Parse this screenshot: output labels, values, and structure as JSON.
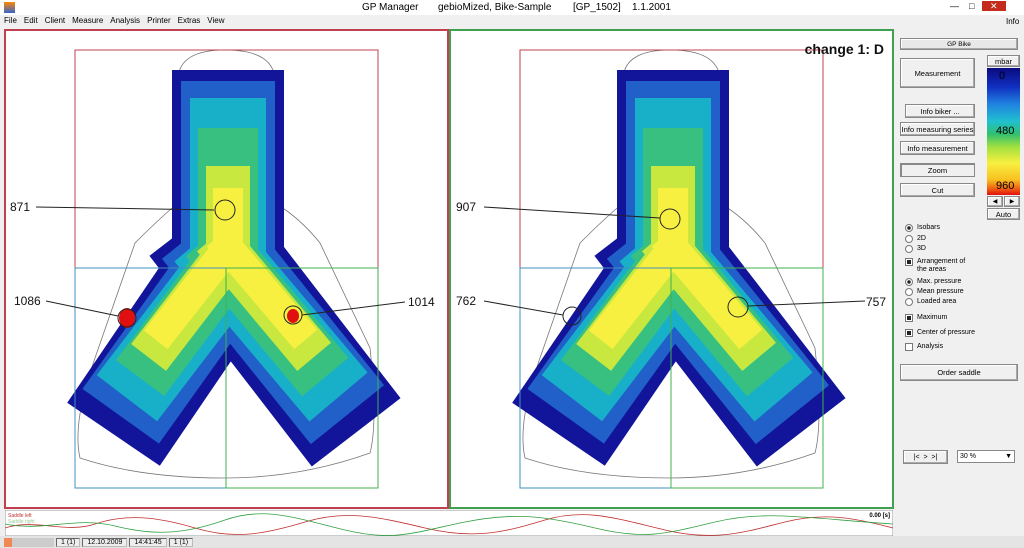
{
  "title_bar": {
    "app": "GP Manager",
    "document": "gebioMized, Bike-Sample",
    "code": "[GP_1502]",
    "date": "1.1.2001"
  },
  "menu": {
    "items": [
      "File",
      "Edit",
      "Client",
      "Measure",
      "Analysis",
      "Printer",
      "Extras",
      "View"
    ],
    "info": "Info"
  },
  "left_panel": {
    "labels": [
      "871",
      "1086",
      "1014"
    ]
  },
  "right_panel": {
    "heading": "change 1: D",
    "labels": [
      "907",
      "762",
      "757"
    ]
  },
  "side_panel": {
    "header": "GP Bike",
    "measurement": "Measurement",
    "info_buttons": [
      "Info biker ...",
      "Info measuring series",
      "Info measurement"
    ],
    "zoom": "Zoom",
    "cut": "Cut",
    "scale": {
      "unit": "mbar",
      "labels": [
        "0",
        "480",
        "960"
      ],
      "auto": "Auto"
    },
    "view_options": [
      "Isobars",
      "2D",
      "3D"
    ],
    "arrangement": "Arrangement of the areas",
    "pressure_options": [
      "Max. pressure",
      "Mean pressure",
      "Loaded area"
    ],
    "checkboxes": [
      "Maximum",
      "Center of pressure",
      "Analysis"
    ],
    "order": "Order saddle",
    "zoom_level": "30 %"
  },
  "timeline": {
    "left": "Saddle left",
    "right": "Saddle right",
    "time": "0.00 [s]"
  },
  "status_bar": [
    "1 (1)",
    "12.10.2009",
    "14:41:45",
    "1 (1)"
  ]
}
